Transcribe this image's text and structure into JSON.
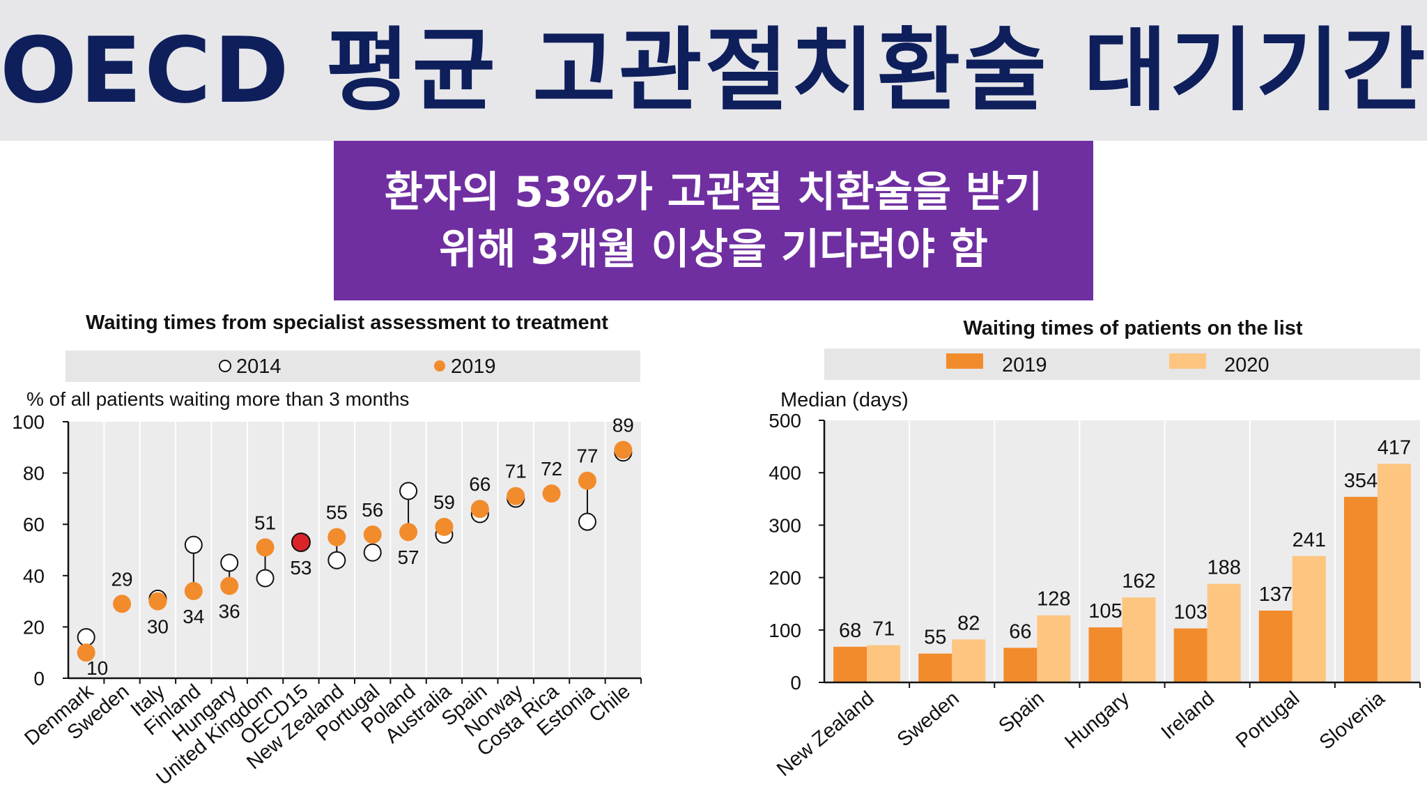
{
  "header": {
    "title": "OECD 평균 고관절치환술 대기기간",
    "subtitle_line1": "환자의 53%가 고관절 치환술을 받기",
    "subtitle_line2": "위해 3개월 이상을 기다려야 함",
    "colors": {
      "title": "#0e1f5c",
      "band": "#e7e7e9",
      "box": "#6f2fa0"
    }
  },
  "chart_data": [
    {
      "type": "scatter",
      "title": "Waiting times from specialist assessment to treatment",
      "ylabel": "% of all patients waiting more than 3 months",
      "ylim": [
        0,
        100
      ],
      "yticks": [
        0,
        20,
        40,
        60,
        80,
        100
      ],
      "legend": [
        "2014",
        "2019"
      ],
      "legend_position": "top",
      "categories": [
        "Denmark",
        "Sweden",
        "Italy",
        "Finland",
        "Hungary",
        "United Kingdom",
        "OECD15",
        "New Zealand",
        "Portugal",
        "Poland",
        "Australia",
        "Spain",
        "Norway",
        "Costa Rica",
        "Estonia",
        "Chile"
      ],
      "series": [
        {
          "name": "2014",
          "values": [
            16,
            null,
            31,
            52,
            45,
            39,
            53,
            46,
            49,
            73,
            56,
            64,
            70,
            null,
            61,
            88
          ]
        },
        {
          "name": "2019",
          "values": [
            10,
            29,
            30,
            34,
            36,
            51,
            53,
            55,
            56,
            57,
            59,
            66,
            71,
            72,
            77,
            89
          ]
        }
      ],
      "data_labels": [
        "10",
        "29",
        "30",
        "34",
        "36",
        "51",
        "53",
        "55",
        "56",
        "57",
        "59",
        "66",
        "71",
        "72",
        "77",
        "89"
      ],
      "highlight": "OECD15",
      "colors": {
        "2019": "#f28b2c",
        "highlight": "#d9242a",
        "2014": "#ffffff"
      }
    },
    {
      "type": "bar",
      "title": "Waiting times of patients on the list",
      "ylabel": "Median (days)",
      "ylim": [
        0,
        500
      ],
      "yticks": [
        0,
        100,
        200,
        300,
        400,
        500
      ],
      "legend_position": "top",
      "categories": [
        "New Zealand",
        "Sweden",
        "Spain",
        "Hungary",
        "Ireland",
        "Portugal",
        "Slovenia"
      ],
      "series": [
        {
          "name": "2019",
          "values": [
            68,
            55,
            66,
            105,
            103,
            137,
            354
          ]
        },
        {
          "name": "2020",
          "values": [
            71,
            82,
            128,
            162,
            188,
            241,
            417
          ]
        }
      ],
      "colors": {
        "2019": "#f28b2c",
        "2020": "#fdc57f"
      }
    }
  ]
}
